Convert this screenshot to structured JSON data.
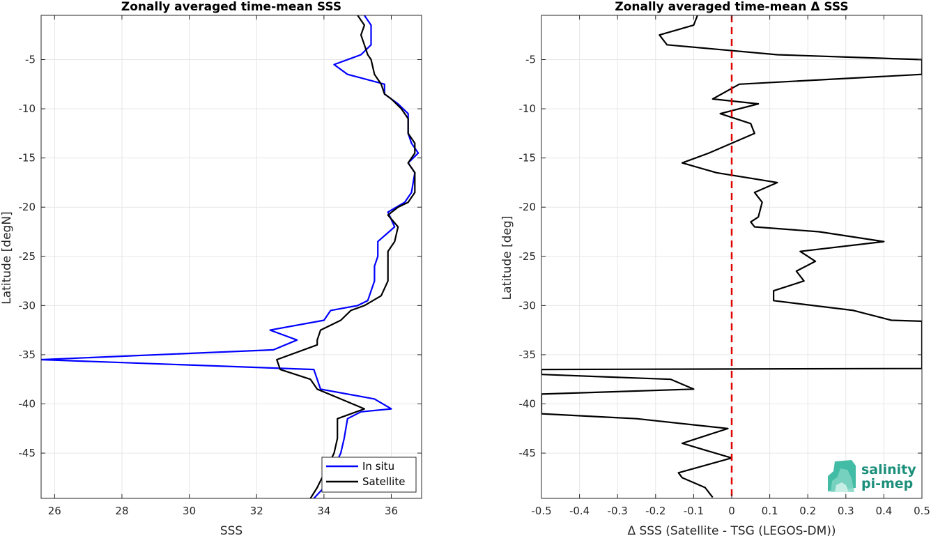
{
  "chart_data": [
    {
      "type": "line",
      "title": "Zonally averaged time-mean SSS",
      "xlabel": "SSS",
      "ylabel": "Latitude [degN]",
      "xlim": [
        25.6,
        36.9
      ],
      "ylim": [
        -49.6,
        -0.5
      ],
      "xticks": [
        26,
        28,
        30,
        32,
        34,
        36
      ],
      "yticks": [
        -45,
        -40,
        -35,
        -30,
        -25,
        -20,
        -15,
        -10,
        -5
      ],
      "grid": true,
      "legend": "bottom-right",
      "series": [
        {
          "name": "In situ",
          "color": "#0000ff",
          "points": [
            [
              35.2,
              -0.5
            ],
            [
              35.4,
              -1.5
            ],
            [
              35.4,
              -3.5
            ],
            [
              35.1,
              -4.5
            ],
            [
              34.3,
              -5.5
            ],
            [
              34.7,
              -6.5
            ],
            [
              35.8,
              -7.5
            ],
            [
              35.8,
              -8.5
            ],
            [
              36.2,
              -9.5
            ],
            [
              36.5,
              -10.5
            ],
            [
              36.5,
              -11.5
            ],
            [
              36.5,
              -12.5
            ],
            [
              36.6,
              -13.5
            ],
            [
              36.8,
              -14.5
            ],
            [
              36.5,
              -15.5
            ],
            [
              36.7,
              -16.5
            ],
            [
              36.6,
              -18.5
            ],
            [
              36.4,
              -19.5
            ],
            [
              35.9,
              -20.5
            ],
            [
              36.1,
              -22.0
            ],
            [
              35.6,
              -23.5
            ],
            [
              35.6,
              -25.0
            ],
            [
              35.5,
              -26.0
            ],
            [
              35.5,
              -27.5
            ],
            [
              35.3,
              -29.5
            ],
            [
              35.0,
              -30.0
            ],
            [
              34.2,
              -30.5
            ],
            [
              34.0,
              -31.5
            ],
            [
              32.4,
              -32.5
            ],
            [
              33.2,
              -33.5
            ],
            [
              32.5,
              -34.5
            ],
            [
              25.6,
              -35.5
            ],
            [
              33.7,
              -36.5
            ],
            [
              33.9,
              -38.5
            ],
            [
              35.5,
              -39.5
            ],
            [
              36.0,
              -40.5
            ],
            [
              35.1,
              -40.8
            ],
            [
              34.7,
              -41.5
            ],
            [
              34.6,
              -43.5
            ],
            [
              34.5,
              -45.0
            ],
            [
              34.0,
              -48.5
            ],
            [
              33.7,
              -49.6
            ]
          ]
        },
        {
          "name": "Satellite",
          "color": "#000000",
          "points": [
            [
              35.0,
              -0.5
            ],
            [
              35.2,
              -1.5
            ],
            [
              35.1,
              -2.5
            ],
            [
              35.2,
              -3.5
            ],
            [
              35.3,
              -4.5
            ],
            [
              35.4,
              -5.0
            ],
            [
              35.5,
              -6.5
            ],
            [
              35.7,
              -7.5
            ],
            [
              35.8,
              -8.5
            ],
            [
              36.0,
              -9.0
            ],
            [
              36.3,
              -10.0
            ],
            [
              36.5,
              -11.0
            ],
            [
              36.5,
              -12.5
            ],
            [
              36.7,
              -13.5
            ],
            [
              36.7,
              -14.5
            ],
            [
              36.5,
              -15.5
            ],
            [
              36.7,
              -16.5
            ],
            [
              36.7,
              -18.5
            ],
            [
              36.5,
              -19.5
            ],
            [
              36.2,
              -20.0
            ],
            [
              35.9,
              -20.8
            ],
            [
              36.2,
              -22.0
            ],
            [
              36.1,
              -23.5
            ],
            [
              35.9,
              -24.5
            ],
            [
              35.9,
              -26.0
            ],
            [
              35.9,
              -27.5
            ],
            [
              35.7,
              -29.0
            ],
            [
              35.2,
              -30.0
            ],
            [
              34.8,
              -30.5
            ],
            [
              34.5,
              -31.5
            ],
            [
              33.9,
              -32.5
            ],
            [
              33.8,
              -33.5
            ],
            [
              33.8,
              -34.0
            ],
            [
              32.6,
              -35.5
            ],
            [
              32.7,
              -36.5
            ],
            [
              33.6,
              -37.5
            ],
            [
              33.8,
              -38.5
            ],
            [
              34.5,
              -39.5
            ],
            [
              35.2,
              -40.5
            ],
            [
              34.4,
              -41.5
            ],
            [
              34.4,
              -43.5
            ],
            [
              34.3,
              -45.0
            ],
            [
              33.8,
              -48.5
            ],
            [
              33.6,
              -49.6
            ]
          ]
        }
      ]
    },
    {
      "type": "line",
      "title": "Zonally averaged time-mean Δ SSS",
      "xlabel": "Δ SSS (Satellite - TSG (LEGOS-DM))",
      "ylabel": "Latitude [deg]",
      "xlim": [
        -0.5,
        0.5
      ],
      "ylim": [
        -49.6,
        -0.5
      ],
      "xticks": [
        -0.5,
        -0.4,
        -0.3,
        -0.2,
        -0.1,
        0,
        0.1,
        0.2,
        0.3,
        0.4,
        0.5
      ],
      "xtick_labels": [
        "-0.5",
        "-0.4",
        "-0.3",
        "-0.2",
        "-0.1",
        "0",
        "0.1",
        "0.2",
        "0.3",
        "0.4",
        "0.5"
      ],
      "yticks": [
        -45,
        -40,
        -35,
        -30,
        -25,
        -20,
        -15,
        -10,
        -5
      ],
      "grid": true,
      "reference_line": {
        "x": 0,
        "color": "#e00000",
        "style": "dashed"
      },
      "series": [
        {
          "name": "",
          "color": "#000000",
          "points": [
            [
              -0.09,
              -0.5
            ],
            [
              -0.1,
              -1.5
            ],
            [
              -0.19,
              -2.5
            ],
            [
              -0.17,
              -3.5
            ],
            [
              0.12,
              -4.5
            ],
            [
              0.5,
              -5.0
            ],
            [
              0.5,
              -6.5
            ],
            [
              0.02,
              -7.5
            ],
            [
              -0.05,
              -9.0
            ],
            [
              0.07,
              -9.5
            ],
            [
              -0.03,
              -10.5
            ],
            [
              0.05,
              -11.5
            ],
            [
              0.06,
              -12.5
            ],
            [
              -0.0,
              -13.5
            ],
            [
              -0.06,
              -14.5
            ],
            [
              -0.13,
              -15.5
            ],
            [
              -0.04,
              -16.5
            ],
            [
              0.12,
              -17.5
            ],
            [
              0.06,
              -18.5
            ],
            [
              0.08,
              -19.5
            ],
            [
              0.07,
              -21.0
            ],
            [
              0.05,
              -21.5
            ],
            [
              0.06,
              -22.0
            ],
            [
              0.23,
              -22.5
            ],
            [
              0.4,
              -23.5
            ],
            [
              0.18,
              -24.5
            ],
            [
              0.22,
              -25.5
            ],
            [
              0.17,
              -26.5
            ],
            [
              0.19,
              -27.5
            ],
            [
              0.11,
              -28.5
            ],
            [
              0.11,
              -29.5
            ],
            [
              0.32,
              -30.5
            ],
            [
              0.42,
              -31.5
            ],
            [
              0.5,
              -31.6
            ],
            [
              0.5,
              -36.4
            ],
            [
              -0.5,
              -36.5
            ],
            [
              -0.5,
              -37.0
            ],
            [
              -0.16,
              -37.5
            ],
            [
              -0.1,
              -38.5
            ],
            [
              -0.5,
              -39.0
            ],
            [
              -0.5,
              -41.0
            ],
            [
              -0.25,
              -41.5
            ],
            [
              -0.01,
              -42.5
            ],
            [
              -0.13,
              -44.0
            ],
            [
              0.0,
              -45.5
            ],
            [
              -0.14,
              -47.0
            ],
            [
              -0.13,
              -47.5
            ],
            [
              -0.07,
              -48.5
            ],
            [
              -0.05,
              -49.5
            ]
          ]
        }
      ]
    }
  ],
  "logo": {
    "line1": "salinity",
    "line2": "pi-mep",
    "color": "#1b8f7a"
  }
}
